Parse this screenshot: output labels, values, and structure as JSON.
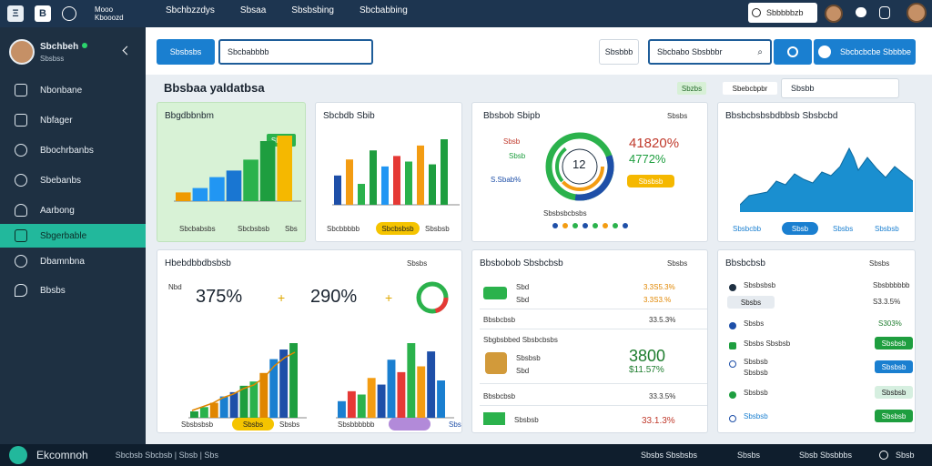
{
  "topbar": {
    "logo1": "Ξ",
    "logo2": "B",
    "nav": [
      "Mooo Kbooozd",
      "Sbchbzzdys",
      "Sbsaa",
      "Sbsbsbing",
      "Sbcbabbing"
    ],
    "search": "Sbbbbbzb"
  },
  "sidebar": {
    "user_name": "Sbchbeh",
    "user_sub": "Sbsbss",
    "items": [
      {
        "label": "Nbonbane",
        "icon": "layers-icon"
      },
      {
        "label": "Nbfager",
        "icon": "login-icon"
      },
      {
        "label": "Bbochrbanbs",
        "icon": "settings-icon"
      },
      {
        "label": "Sbebanbs",
        "icon": "refresh-icon"
      },
      {
        "label": "Aarbong",
        "icon": "user-icon"
      },
      {
        "label": "Sbgerbable",
        "icon": "folder-icon"
      },
      {
        "label": "Dbamnbna",
        "icon": "chat-icon"
      },
      {
        "label": "Bbsbs",
        "icon": "message-icon"
      }
    ]
  },
  "toolbar": {
    "btn_primary": "Sbsbsbs",
    "input_value": "Sbcbabbbb",
    "filter": "Sbsbbb",
    "search_placeholder": "Sbcbabo Sbsbbbr",
    "cta": "Sbcbcbcbe Sbbbbe"
  },
  "section": {
    "title": "Bbsbaa yaldatbsa",
    "status": "Sbzbs",
    "select": "Sbebcbpbr",
    "select2": "Sbsbb"
  },
  "card1": {
    "title": "Bbgdbbnbm",
    "badge": "Sbzbs",
    "footer": [
      "Sbcbabsbs",
      "Sbcbsbsb",
      "Sbs"
    ],
    "values": [
      8,
      12,
      22,
      28,
      38,
      55,
      60
    ],
    "colors": [
      "#ef9a00",
      "#2196f3",
      "#2196f3",
      "#1976d2",
      "#2bb24c",
      "#1e9e3f",
      "#f5b800"
    ]
  },
  "card2": {
    "title": "Sbcbdb Sbib",
    "footer": [
      "Sbcbbbbb",
      "Sbcbsbsb",
      "Sbsbsb"
    ],
    "values": [
      42,
      65,
      30,
      78,
      55,
      70,
      62,
      85,
      58,
      94
    ],
    "colors": [
      "#1e4fa8",
      "#f39c12",
      "#2bb24c",
      "#1e9e3f",
      "#2196f3",
      "#e53935",
      "#2bb24c",
      "#f39c12",
      "#1e9e3f",
      "#1e9e3f"
    ]
  },
  "card3": {
    "title": "Bbsbob Sbipb",
    "menu": "Sbsbs",
    "center": "12",
    "pct1": "Sbsb",
    "pct2": "Sbsb",
    "pct3": "S.Sbab%",
    "big1": "41820%",
    "big2": "4772%",
    "button": "Sbsbsb",
    "legend": "Sbsbsbcbsbs"
  },
  "card4": {
    "title": "Bbsbcbsbsbdbbsb Sbsbcbd",
    "footer": [
      "Sbsbcbb",
      "Sbsb",
      "Sbsbs",
      "Sbsbsb"
    ]
  },
  "card5": {
    "title": "Hbebdbbdbsbsb",
    "menu": "Sbsbs",
    "big1": "375%",
    "big2": "290%",
    "label1": "Nbd",
    "footer": [
      "Sbsbsbsb",
      "Sbsbs",
      "Sbsbs",
      "Sbsbbbbbb",
      "Sbs"
    ],
    "values1": [
      6,
      10,
      14,
      20,
      24,
      30,
      34,
      42,
      55,
      64,
      70
    ],
    "values2": [
      20,
      32,
      28,
      48,
      40,
      70,
      55,
      90,
      62,
      80,
      45
    ]
  },
  "card6": {
    "title": "Bbsbobob Sbsbcbsb",
    "menu": "Sbsbs",
    "rows": [
      {
        "a": "Sbd",
        "b": "Sbd",
        "v1": "3.3S5.3%",
        "v2": "3.3S3.%"
      },
      {
        "a": "Bbsbcbsb",
        "v1": "33.5.3%"
      },
      {
        "a": "Sbgbsbbed Sbsbcbsbs",
        "b": "Sbsbsb",
        "c": "Sbd",
        "big": "3800",
        "big2": "$11.57%"
      },
      {
        "a": "Bbsbcbsb",
        "v1": "33.3.5%"
      },
      {
        "a": "Sbsbsb",
        "v1": "33.1.3%"
      }
    ]
  },
  "card7": {
    "title": "Bbsbcbsb",
    "menu": "Sbsbs",
    "rows": [
      {
        "a": "Sbsbsbsb",
        "v": "Sbsbbbbbb"
      },
      {
        "a": "Sbsbs",
        "v": "S3.3.5%"
      },
      {
        "a": "Sbsbs",
        "v": "S303%"
      },
      {
        "a": "Sbsbs Sbsbsb",
        "v": "Sbsbsb"
      },
      {
        "a": "Sbsbsb",
        "b": "Sbsbsb",
        "v": "Sbsbsb"
      },
      {
        "a": "Sbsbsb",
        "v": "Sbsbsb"
      },
      {
        "a": "Sbsbsb",
        "v": "Sbsbsb"
      }
    ]
  },
  "bottombar": {
    "brand": "Ekcomnoh",
    "status": "Sbcbsb Sbcbsb | Sbsb | Sbs",
    "right1": "Sbsbs Sbsbsbs",
    "right2": "Sbsbs",
    "right3": "Sbsb Sbsbbbs",
    "right4": "Sbsb"
  }
}
